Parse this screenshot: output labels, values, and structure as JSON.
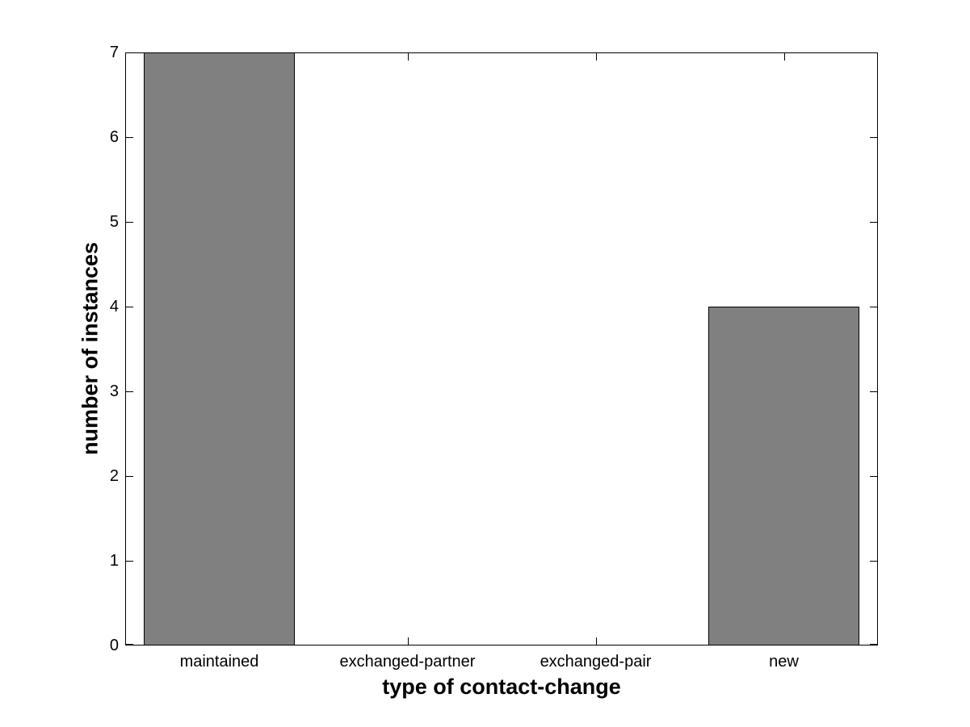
{
  "chart_data": {
    "type": "bar",
    "categories": [
      "maintained",
      "exchanged-partner",
      "exchanged-pair",
      "new"
    ],
    "values": [
      7,
      0,
      0,
      4
    ],
    "xlabel": "type of contact-change",
    "ylabel": "number of instances",
    "ylim": [
      0,
      7
    ],
    "yticks": [
      0,
      1,
      2,
      3,
      4,
      5,
      6,
      7
    ],
    "bar_width_fraction": 0.8,
    "bar_color": "#808080",
    "bar_edge_color": "#000000",
    "axis_color": "#000000",
    "background_color": "#ffffff",
    "grid": false,
    "tick_direction": "in",
    "box": true
  }
}
